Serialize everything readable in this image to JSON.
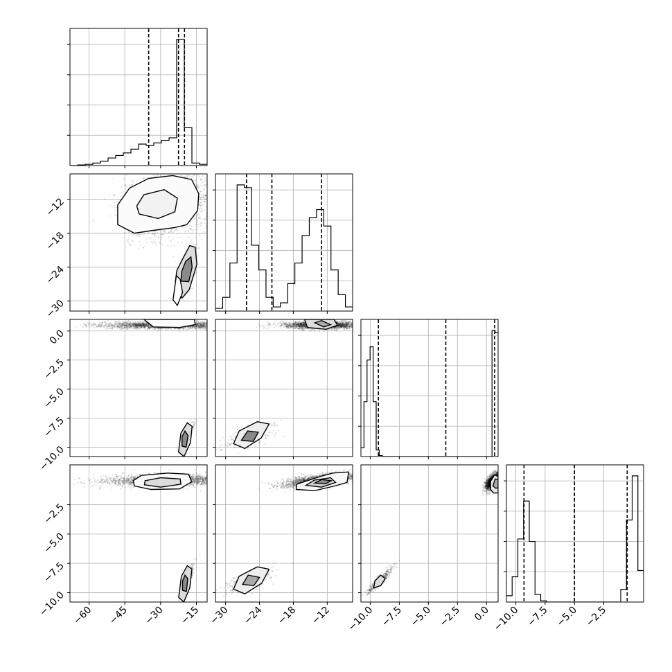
{
  "chart_data": {
    "type": "corner",
    "parameters": [
      {
        "ticks": [
          -60,
          -45,
          -30,
          -15
        ],
        "tick_labels": [
          "−60",
          "−45",
          "−30",
          "−15"
        ],
        "range": [
          -68,
          -10.5
        ],
        "quantiles": [
          -35,
          -22.5,
          -20
        ]
      },
      {
        "ticks": [
          -30,
          -24,
          -18,
          -12
        ],
        "tick_labels": [
          "−30",
          "−24",
          "−18",
          "−12"
        ],
        "range": [
          -31.8,
          -7.5
        ],
        "quantiles": [
          -26.3,
          -21.8,
          -13
        ]
      },
      {
        "ticks": [
          -10.0,
          -7.5,
          -5.0,
          -2.5,
          0.0
        ],
        "tick_labels": [
          "−10.0",
          "−7.5",
          "−5.0",
          "−2.5",
          "0.0"
        ],
        "range": [
          -10.8,
          1.0
        ],
        "quantiles": [
          -9.3,
          -3.5,
          0.7
        ]
      },
      {
        "ticks": [
          -10.0,
          -7.5,
          -5.0,
          -2.5
        ],
        "tick_labels": [
          "−10.0",
          "−7.5",
          "−5.0",
          "−2.5"
        ],
        "range": [
          -10.8,
          0.9
        ],
        "quantiles": [
          -9.3,
          -5.0,
          -0.5
        ]
      }
    ],
    "histograms": [
      [
        0,
        0.005,
        0.01,
        0.02,
        0.035,
        0.06,
        0.08,
        0.1,
        0.13,
        0.17,
        0.16,
        0.18,
        0.2,
        0.22,
        1.0,
        0.3,
        0.02,
        0.01
      ],
      [
        0.02,
        0.1,
        0.35,
        0.92,
        0.9,
        0.48,
        0.3,
        0.1,
        0.03,
        0.06,
        0.2,
        0.35,
        0.55,
        0.68,
        0.74,
        0.62,
        0.3,
        0.12,
        0.03
      ],
      [
        0.08,
        0.5,
        0.88,
        1.0,
        0.5,
        0.06,
        0.01,
        0,
        0,
        0,
        0,
        0,
        0,
        0,
        0,
        0,
        0,
        0,
        0,
        0,
        0,
        0,
        0,
        0,
        0,
        0,
        0,
        0,
        0,
        0,
        0,
        0,
        0,
        0,
        0,
        0,
        0,
        0,
        0,
        0,
        0,
        0,
        0,
        1.15,
        1.13
      ],
      [
        0.05,
        0.2,
        0.5,
        0.8,
        0.48,
        0.06,
        0.01,
        0,
        0,
        0,
        0,
        0,
        0,
        0,
        0,
        0,
        0,
        0,
        0,
        0,
        0.1,
        0.65,
        1.0,
        0.25
      ]
    ],
    "blobs": [
      {
        "row": 1,
        "col": 0,
        "clusters": [
          {
            "mx": -27,
            "my": -13,
            "sx": 9,
            "sy": 2.8,
            "rho": 0.2,
            "w": 0.85
          },
          {
            "mx": -18.5,
            "my": -24.8,
            "sx": 1.8,
            "sy": 2.0,
            "rho": 0.7,
            "w": 0.15
          }
        ]
      },
      {
        "row": 2,
        "col": 0,
        "clusters": [
          {
            "mx": -27,
            "my": 0.5,
            "sx": 14,
            "sy": 0.16,
            "rho": 0.0,
            "w": 0.85
          },
          {
            "mx": -19,
            "my": -9.1,
            "sx": 1.3,
            "sy": 0.55,
            "rho": 0.8,
            "w": 0.15
          }
        ]
      },
      {
        "row": 2,
        "col": 1,
        "clusters": [
          {
            "mx": -13,
            "my": 0.5,
            "sx": 3.5,
            "sy": 0.16,
            "rho": 0.0,
            "w": 0.85
          },
          {
            "mx": -25.8,
            "my": -9.1,
            "sx": 2.0,
            "sy": 0.5,
            "rho": 0.7,
            "w": 0.15
          }
        ]
      },
      {
        "row": 3,
        "col": 0,
        "clusters": [
          {
            "mx": -27,
            "my": -0.4,
            "sx": 13,
            "sy": 0.25,
            "rho": 0.15,
            "w": 0.85
          },
          {
            "mx": -19,
            "my": -9.0,
            "sx": 1.3,
            "sy": 0.6,
            "rho": 0.8,
            "w": 0.15
          }
        ]
      },
      {
        "row": 3,
        "col": 1,
        "clusters": [
          {
            "mx": -13,
            "my": -0.4,
            "sx": 3.5,
            "sy": 0.3,
            "rho": 0.6,
            "w": 0.85
          },
          {
            "mx": -25.8,
            "my": -9.0,
            "sx": 2.0,
            "sy": 0.5,
            "rho": 0.7,
            "w": 0.15
          }
        ]
      },
      {
        "row": 3,
        "col": 2,
        "clusters": [
          {
            "mx": 0.55,
            "my": -0.5,
            "sx": 0.3,
            "sy": 0.35,
            "rho": 0.6,
            "w": 0.85
          },
          {
            "mx": -9.2,
            "my": -9.0,
            "sx": 0.55,
            "sy": 0.55,
            "rho": 0.93,
            "w": 0.15
          }
        ]
      }
    ],
    "contours": [
      {
        "row": 1,
        "col": 0,
        "series": [
          {
            "fill": "#fbfbfb",
            "points": [
              [
                -48,
                -16.5
              ],
              [
                -41,
                -18
              ],
              [
                -33,
                -17.5
              ],
              [
                -24,
                -17
              ],
              [
                -19,
                -16.5
              ],
              [
                -14.5,
                -14
              ],
              [
                -14,
                -11
              ],
              [
                -17,
                -8.5
              ],
              [
                -25,
                -7.8
              ],
              [
                -35,
                -8.3
              ],
              [
                -43,
                -10
              ],
              [
                -48,
                -13
              ]
            ]
          },
          {
            "fill": "#f2f2f2",
            "points": [
              [
                -39,
                -14.6
              ],
              [
                -31,
                -15.4
              ],
              [
                -24,
                -14.2
              ],
              [
                -23,
                -11.8
              ],
              [
                -28.5,
                -10.3
              ],
              [
                -37,
                -11.2
              ],
              [
                -40,
                -13.2
              ]
            ]
          },
          {
            "fill": "#dcdcdc",
            "points": [
              [
                -23.8,
                -26.5
              ],
              [
                -21,
                -29.5
              ],
              [
                -18,
                -28
              ],
              [
                -14.8,
                -23.5
              ],
              [
                -15.5,
                -20.5
              ],
              [
                -17.8,
                -20.2
              ],
              [
                -20.8,
                -22.6
              ],
              [
                -23.2,
                -24.6
              ]
            ]
          },
          {
            "fill": "#8a8a8a",
            "points": [
              [
                -21.5,
                -26.5
              ],
              [
                -18.2,
                -26.6
              ],
              [
                -16.8,
                -24
              ],
              [
                -17.3,
                -22.2
              ],
              [
                -19.5,
                -23
              ],
              [
                -21.2,
                -24.8
              ]
            ]
          },
          {
            "fill": "#ffffff",
            "points": [
              [
                -23.4,
                -25.5
              ],
              [
                -24.8,
                -29.8
              ],
              [
                -23,
                -30.8
              ],
              [
                -20.8,
                -28.5
              ],
              [
                -21.8,
                -26.2
              ]
            ]
          }
        ]
      },
      {
        "row": 2,
        "col": 0,
        "series": [
          {
            "fill": "#fbfbfb",
            "points": [
              [
                -37,
                1.0
              ],
              [
                -33,
                0.35
              ],
              [
                -22,
                0.3
              ],
              [
                -15.5,
                0.55
              ],
              [
                -15.8,
                1.0
              ]
            ]
          },
          {
            "fill": "#dcdcdc",
            "points": [
              [
                -22.5,
                -10.4
              ],
              [
                -20.2,
                -10.8
              ],
              [
                -17.5,
                -9.6
              ],
              [
                -16.8,
                -8.2
              ],
              [
                -18.8,
                -7.9
              ],
              [
                -21.5,
                -8.8
              ]
            ]
          },
          {
            "fill": "#8a8a8a",
            "points": [
              [
                -21,
                -9.9
              ],
              [
                -19.3,
                -10.0
              ],
              [
                -18.5,
                -9.0
              ],
              [
                -19.8,
                -8.6
              ],
              [
                -21,
                -9.1
              ]
            ]
          }
        ]
      },
      {
        "row": 2,
        "col": 1,
        "series": [
          {
            "fill": "#dcdcdc",
            "points": [
              [
                -16,
                1.0
              ],
              [
                -15.5,
                0.3
              ],
              [
                -12.2,
                0.15
              ],
              [
                -10.2,
                0.5
              ],
              [
                -10.8,
                1.0
              ]
            ]
          },
          {
            "fill": "#aaaaaa",
            "points": [
              [
                -14.2,
                0.7
              ],
              [
                -12.6,
                0.35
              ],
              [
                -11.4,
                0.55
              ],
              [
                -13,
                0.9
              ]
            ]
          },
          {
            "fill": "#eeeeee",
            "points": [
              [
                -28.6,
                -9.7
              ],
              [
                -26.6,
                -10.1
              ],
              [
                -23.7,
                -9.2
              ],
              [
                -22.3,
                -8.0
              ],
              [
                -24.4,
                -7.8
              ],
              [
                -27.6,
                -8.6
              ]
            ]
          },
          {
            "fill": "#8a8a8a",
            "points": [
              [
                -27.2,
                -9.4
              ],
              [
                -25.1,
                -9.5
              ],
              [
                -24.2,
                -8.7
              ],
              [
                -26.1,
                -8.6
              ]
            ]
          }
        ]
      },
      {
        "row": 3,
        "col": 0,
        "series": [
          {
            "fill": "#f8f8f8",
            "points": [
              [
                -41,
                -0.9
              ],
              [
                -34,
                -1.2
              ],
              [
                -22,
                -1.15
              ],
              [
                -17,
                -0.55
              ],
              [
                -18.3,
                0.1
              ],
              [
                -27,
                0.2
              ],
              [
                -38,
                0.0
              ],
              [
                -41.5,
                -0.45
              ]
            ]
          },
          {
            "fill": "#dcdcdc",
            "points": [
              [
                -36.8,
                -0.8
              ],
              [
                -30,
                -1.0
              ],
              [
                -21.5,
                -0.75
              ],
              [
                -21.8,
                -0.3
              ],
              [
                -30,
                -0.2
              ],
              [
                -36.5,
                -0.45
              ]
            ]
          },
          {
            "fill": "#dcdcdc",
            "points": [
              [
                -22.4,
                -10.4
              ],
              [
                -20.3,
                -10.8
              ],
              [
                -17.8,
                -9.6
              ],
              [
                -16.9,
                -8.0
              ],
              [
                -18.8,
                -7.7
              ],
              [
                -21.3,
                -8.6
              ]
            ]
          },
          {
            "fill": "#8a8a8a",
            "points": [
              [
                -20.8,
                -9.8
              ],
              [
                -19.2,
                -9.9
              ],
              [
                -18.6,
                -8.8
              ],
              [
                -19.8,
                -8.5
              ],
              [
                -20.8,
                -9.0
              ]
            ]
          }
        ]
      },
      {
        "row": 3,
        "col": 1,
        "series": [
          {
            "fill": "#f8f8f8",
            "points": [
              [
                -17.5,
                -1.2
              ],
              [
                -14.2,
                -1.3
              ],
              [
                -10.7,
                -0.9
              ],
              [
                -8.5,
                -0.6
              ],
              [
                -8.2,
                0.3
              ],
              [
                -11,
                0.2
              ],
              [
                -13.3,
                -0.1
              ],
              [
                -17.4,
                -0.75
              ]
            ]
          },
          {
            "fill": "#cfcfcf",
            "points": [
              [
                -15.8,
                -0.85
              ],
              [
                -13,
                -1.0
              ],
              [
                -10.5,
                -0.6
              ],
              [
                -11.4,
                -0.2
              ],
              [
                -14.3,
                -0.4
              ]
            ]
          },
          {
            "fill": "#8a8a8a",
            "points": [
              [
                -14.2,
                -0.65
              ],
              [
                -12.2,
                -0.7
              ],
              [
                -11.3,
                -0.45
              ],
              [
                -13,
                -0.35
              ]
            ]
          },
          {
            "fill": "#eeeeee",
            "points": [
              [
                -28.6,
                -9.7
              ],
              [
                -26.6,
                -10.1
              ],
              [
                -23.6,
                -9.2
              ],
              [
                -22.3,
                -8.0
              ],
              [
                -24.4,
                -7.8
              ],
              [
                -27.6,
                -8.6
              ]
            ]
          },
          {
            "fill": "#aaaaaa",
            "points": [
              [
                -27,
                -9.3
              ],
              [
                -25,
                -9.4
              ],
              [
                -24,
                -8.7
              ],
              [
                -26,
                -8.5
              ]
            ]
          }
        ]
      },
      {
        "row": 3,
        "col": 2,
        "series": [
          {
            "fill": "#e8e8e8",
            "points": [
              [
                0.35,
                -1.2
              ],
              [
                0.6,
                -1.5
              ],
              [
                1.0,
                -1.5
              ],
              [
                1.0,
                -0.1
              ],
              [
                0.7,
                0.05
              ],
              [
                0.35,
                -0.5
              ]
            ]
          },
          {
            "fill": "#aaaaaa",
            "points": [
              [
                0.55,
                -0.9
              ],
              [
                0.8,
                -1.1
              ],
              [
                1.0,
                -1.05
              ],
              [
                1.0,
                -0.35
              ],
              [
                0.75,
                -0.3
              ]
            ]
          },
          {
            "fill": "#dcdcdc",
            "points": [
              [
                -9.7,
                -9.6
              ],
              [
                -9.1,
                -9.4
              ],
              [
                -8.7,
                -8.8
              ],
              [
                -9.1,
                -8.5
              ],
              [
                -9.6,
                -9.0
              ]
            ]
          }
        ]
      }
    ],
    "grid": true,
    "legend": "none",
    "colors": {
      "hist": "#000000",
      "scatter": "#000000",
      "grid": "#b0b0b0",
      "axes": "#000000"
    }
  }
}
